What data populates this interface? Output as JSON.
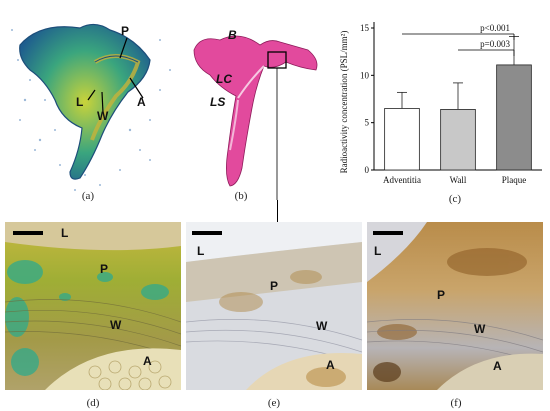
{
  "figure": {
    "captions": [
      "(a)",
      "(b)",
      "(c)",
      "(d)",
      "(e)",
      "(f)"
    ]
  },
  "panel_a": {
    "labels": {
      "P": "P",
      "A": "A",
      "L": "L",
      "W": "W"
    }
  },
  "panel_b": {
    "labels": {
      "B": "B",
      "LC": "LC",
      "LS": "LS"
    }
  },
  "micrographs": {
    "d": {
      "L": "L",
      "P": "P",
      "W": "W",
      "A": "A"
    },
    "e": {
      "L": "L",
      "P": "P",
      "W": "W",
      "A": "A"
    },
    "f": {
      "L": "L",
      "P": "P",
      "W": "W",
      "A": "A"
    }
  },
  "colors": {
    "bar_adventitia": "#ffffff",
    "bar_wall": "#c8c8c8",
    "bar_plaque": "#8c8c8c",
    "stain_pink": "#e0409a",
    "stain_green": "#2faa8c"
  },
  "chart_data": {
    "type": "bar",
    "ylabel": "Radioactivity concentration (PSL/mm²)",
    "categories": [
      "Adventitia",
      "Wall",
      "Plaque"
    ],
    "values": [
      6.5,
      6.4,
      11.1
    ],
    "errors": [
      1.7,
      2.8,
      3.0
    ],
    "ylim": [
      0,
      15
    ],
    "yticks": [
      "0",
      "5",
      "10",
      "15"
    ],
    "annotations": [
      {
        "text": "p<0.001",
        "from": "Adventitia",
        "to": "Plaque"
      },
      {
        "text": "p=0.003",
        "from": "Wall",
        "to": "Plaque"
      }
    ]
  }
}
